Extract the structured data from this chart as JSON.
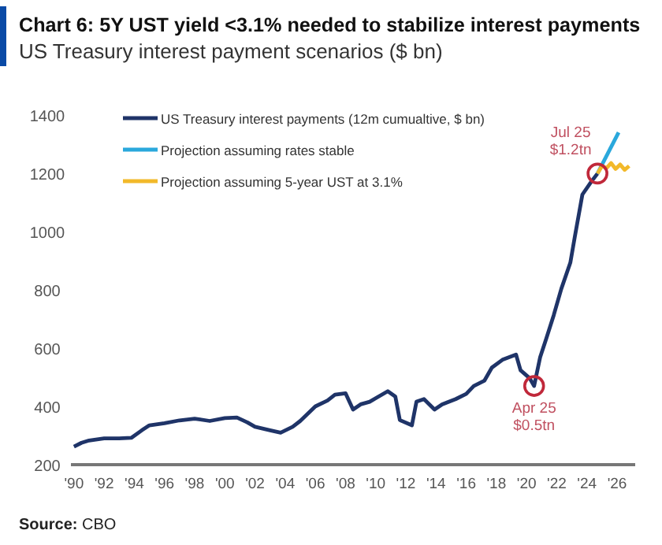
{
  "chart_data": {
    "type": "line",
    "title": "Chart 6: 5Y UST yield <3.1% needed to stabilize interest payments",
    "subtitle": "US Treasury interest payment scenarios ($ bn)",
    "xlim": [
      1989.8,
      2027.2
    ],
    "ylim": [
      200,
      1400
    ],
    "xticks": [
      {
        "value": 1990,
        "label": "'90"
      },
      {
        "value": 1992,
        "label": "'92"
      },
      {
        "value": 1994,
        "label": "'94"
      },
      {
        "value": 1996,
        "label": "'96"
      },
      {
        "value": 1998,
        "label": "'98"
      },
      {
        "value": 2000,
        "label": "'00"
      },
      {
        "value": 2002,
        "label": "'02"
      },
      {
        "value": 2004,
        "label": "'04"
      },
      {
        "value": 2006,
        "label": "'06"
      },
      {
        "value": 2008,
        "label": "'08"
      },
      {
        "value": 2010,
        "label": "'10"
      },
      {
        "value": 2012,
        "label": "'12"
      },
      {
        "value": 2014,
        "label": "'14"
      },
      {
        "value": 2016,
        "label": "'16"
      },
      {
        "value": 2018,
        "label": "'18"
      },
      {
        "value": 2020,
        "label": "'20"
      },
      {
        "value": 2022,
        "label": "'22"
      },
      {
        "value": 2024,
        "label": "'24"
      },
      {
        "value": 2026,
        "label": "'26"
      }
    ],
    "yticks": [
      200,
      400,
      600,
      800,
      1000,
      1200,
      1400
    ],
    "legend": "top left",
    "marker": "none",
    "series": [
      {
        "name": "US Treasury interest payments (12m cumualtive, $ bn)",
        "color": "#1f3468",
        "x": [
          1990,
          1990.5,
          1991,
          1992,
          1993,
          1993.8,
          1994.5,
          1995,
          1996,
          1997,
          1998,
          1999,
          2000,
          2000.8,
          2001.5,
          2002,
          2003,
          2003.7,
          2004.5,
          2005,
          2006,
          2006.8,
          2007.3,
          2008,
          2008.5,
          2009,
          2009.6,
          2010.8,
          2011.3,
          2011.6,
          2012.4,
          2012.7,
          2013.2,
          2013.9,
          2014.4,
          2015.3,
          2016,
          2016.5,
          2017.2,
          2017.7,
          2018.4,
          2019.3,
          2019.6,
          2020.2,
          2020.5,
          2020.9,
          2021.3,
          2021.8,
          2022.3,
          2022.9,
          2023.2,
          2023.7,
          2024.3,
          2024.7
        ],
        "values": [
          262,
          275,
          283,
          290,
          290,
          292,
          318,
          335,
          342,
          352,
          358,
          350,
          360,
          362,
          345,
          330,
          318,
          310,
          330,
          350,
          400,
          420,
          440,
          445,
          389,
          407,
          416,
          452,
          434,
          353,
          335,
          416,
          425,
          389,
          407,
          425,
          443,
          470,
          488,
          533,
          560,
          578,
          524,
          497,
          470,
          569,
          632,
          713,
          803,
          893,
          983,
          1127,
          1172,
          1199
        ]
      },
      {
        "name": "Projection assuming rates stable",
        "color": "#2aa8dc",
        "x": [
          2024.7,
          2026.1
        ],
        "values": [
          1199,
          1340
        ]
      },
      {
        "name": "Projection assuming 5-year UST at 3.1%",
        "color": "#f2b92a",
        "x": [
          2024.7,
          2025.0,
          2025.3,
          2025.6,
          2025.9,
          2026.2,
          2026.5,
          2026.8
        ],
        "values": [
          1199,
          1225,
          1218,
          1235,
          1215,
          1230,
          1212,
          1225
        ]
      }
    ],
    "annotations": [
      {
        "text": "Jul 25\n$1.2tn",
        "x": 2024.7,
        "y": 1199
      },
      {
        "text": "Apr 25\n$0.5tn",
        "x": 2020.5,
        "y": 470
      },
      "Source: CBO"
    ]
  }
}
